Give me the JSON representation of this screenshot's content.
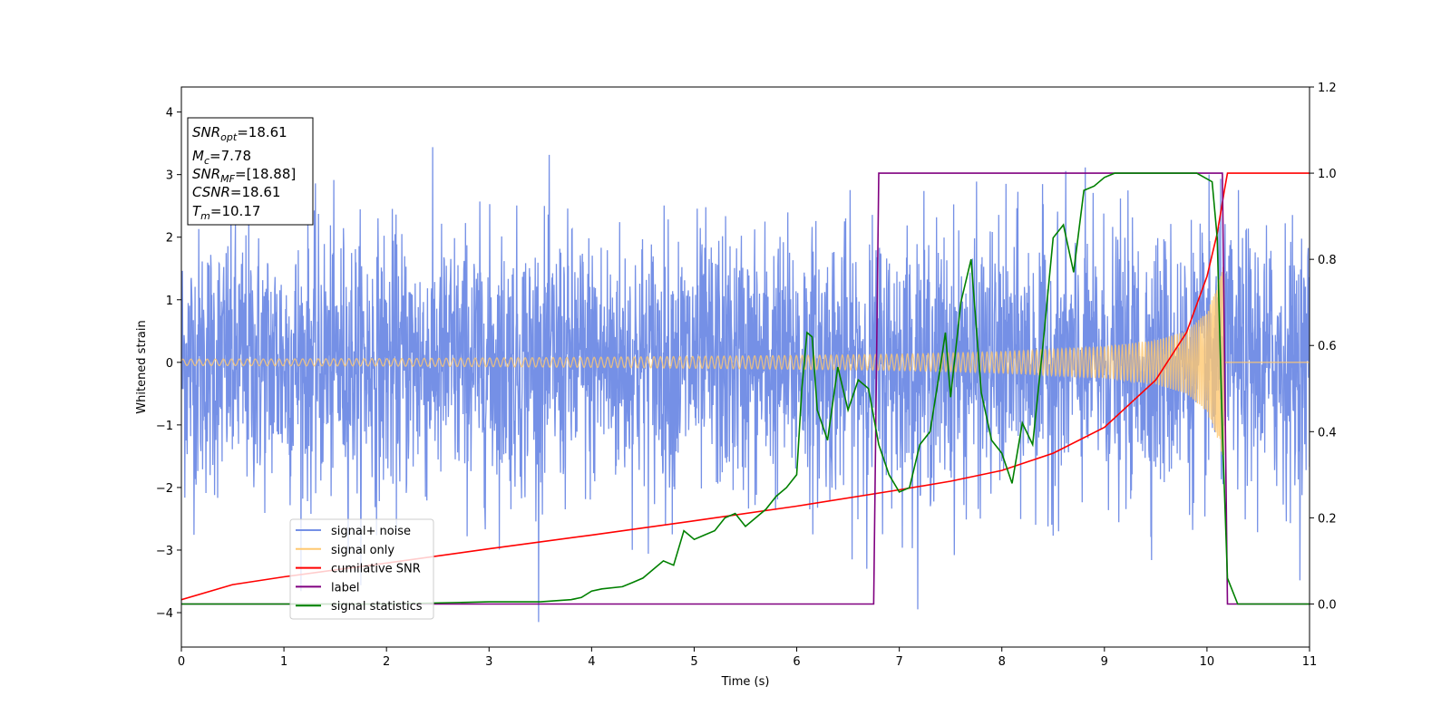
{
  "chart_data": {
    "type": "line",
    "xlabel": "Time (s)",
    "ylabel": "Whitened strain",
    "xlim": [
      0,
      11
    ],
    "ylim_left": [
      -4.55,
      4.4
    ],
    "ylim_right": [
      -0.1,
      1.2
    ],
    "x_ticks": [
      "0",
      "1",
      "2",
      "3",
      "4",
      "5",
      "6",
      "7",
      "8",
      "9",
      "10",
      "11"
    ],
    "y_left_ticks": [
      "4",
      "3",
      "2",
      "1",
      "0",
      "−1",
      "−2",
      "−3",
      "−4"
    ],
    "y_left_tick_values": [
      4,
      3,
      2,
      1,
      0,
      -1,
      -2,
      -3,
      -4
    ],
    "y_right_ticks": [
      "1.2",
      "1.0",
      "0.8",
      "0.6",
      "0.4",
      "0.2",
      "0.0"
    ],
    "y_right_tick_values": [
      1.2,
      1.0,
      0.8,
      0.6,
      0.4,
      0.2,
      0.0
    ],
    "info_box": {
      "snr_opt": {
        "base": "SNR",
        "sub": "opt",
        "value": "=18.61"
      },
      "mc": {
        "base": "M",
        "sub": "c",
        "value": "=7.78"
      },
      "snr_mf": {
        "base": "SNR",
        "sub": "MF",
        "value": "=[18.88]"
      },
      "csnr": {
        "base": "CSNR",
        "value": "=18.61"
      },
      "tm": {
        "base": "T",
        "sub": "m",
        "value": "=10.17"
      }
    },
    "legend": {
      "placement": "lower-left",
      "entries": [
        {
          "label": "signal+ noise",
          "color": "#7590e6"
        },
        {
          "label": "signal only",
          "color": "#ffc870"
        },
        {
          "label": "cumilative SNR",
          "color": "#ff0000"
        },
        {
          "label": "label",
          "color": "#800080"
        },
        {
          "label": "signal statistics",
          "color": "#008000"
        }
      ]
    },
    "series": [
      {
        "name": "signal+ noise",
        "axis": "left",
        "color": "#7590e6",
        "description": "white noise around 0, typical range -2.5 to 3, extremes -4.2 to 4.0",
        "x_range": [
          0,
          11
        ],
        "envelope": [
          -4.2,
          4.0
        ]
      },
      {
        "name": "signal only",
        "axis": "left",
        "color": "#ffc870",
        "description": "chirp with growing amplitude until merger, then zero",
        "x": [
          0,
          2,
          4,
          6,
          7,
          8,
          9,
          9.5,
          9.8,
          10,
          10.1,
          10.17
        ],
        "amplitude": [
          0.05,
          0.06,
          0.08,
          0.11,
          0.13,
          0.17,
          0.25,
          0.35,
          0.5,
          0.8,
          1.2,
          1.6
        ]
      },
      {
        "name": "cumilative SNR",
        "axis": "right",
        "color": "#ff0000",
        "x": [
          0,
          0.5,
          1,
          2,
          3,
          4,
          5,
          6,
          7,
          7.5,
          8,
          8.5,
          9,
          9.5,
          9.8,
          10,
          10.1,
          10.17,
          10.2,
          11
        ],
        "y": [
          0.01,
          0.045,
          0.063,
          0.095,
          0.128,
          0.16,
          0.193,
          0.227,
          0.265,
          0.285,
          0.31,
          0.35,
          0.41,
          0.52,
          0.63,
          0.76,
          0.86,
          0.96,
          1.0,
          1.0
        ]
      },
      {
        "name": "label",
        "axis": "right",
        "color": "#800080",
        "x": [
          0,
          6.75,
          6.8,
          10.15,
          10.2,
          11
        ],
        "y": [
          0.0,
          0.0,
          1.0,
          1.0,
          0.0,
          0.0
        ]
      },
      {
        "name": "signal statistics",
        "axis": "right",
        "color": "#008000",
        "x": [
          0,
          1,
          2,
          3,
          3.5,
          3.8,
          3.9,
          4.0,
          4.1,
          4.3,
          4.4,
          4.5,
          4.6,
          4.7,
          4.8,
          4.9,
          5.0,
          5.1,
          5.2,
          5.3,
          5.4,
          5.5,
          5.6,
          5.7,
          5.8,
          5.9,
          6.0,
          6.05,
          6.1,
          6.15,
          6.2,
          6.3,
          6.4,
          6.5,
          6.6,
          6.7,
          6.8,
          6.9,
          7.0,
          7.1,
          7.2,
          7.3,
          7.4,
          7.45,
          7.5,
          7.6,
          7.7,
          7.8,
          7.9,
          8.0,
          8.1,
          8.2,
          8.3,
          8.4,
          8.5,
          8.6,
          8.7,
          8.8,
          8.9,
          9.0,
          9.1,
          9.2,
          9.5,
          9.9,
          10.05,
          10.1,
          10.15,
          10.2,
          10.3,
          11
        ],
        "y": [
          0.0,
          0.0,
          0.0,
          0.005,
          0.005,
          0.01,
          0.015,
          0.03,
          0.035,
          0.04,
          0.05,
          0.06,
          0.08,
          0.1,
          0.09,
          0.17,
          0.15,
          0.16,
          0.17,
          0.2,
          0.21,
          0.18,
          0.2,
          0.22,
          0.25,
          0.27,
          0.3,
          0.5,
          0.63,
          0.62,
          0.45,
          0.38,
          0.55,
          0.45,
          0.52,
          0.5,
          0.37,
          0.3,
          0.26,
          0.27,
          0.37,
          0.4,
          0.55,
          0.63,
          0.48,
          0.7,
          0.8,
          0.49,
          0.38,
          0.35,
          0.28,
          0.42,
          0.37,
          0.6,
          0.85,
          0.88,
          0.77,
          0.96,
          0.97,
          0.99,
          1.0,
          1.0,
          1.0,
          1.0,
          0.98,
          0.85,
          0.4,
          0.06,
          0.0,
          0.0
        ]
      }
    ]
  }
}
